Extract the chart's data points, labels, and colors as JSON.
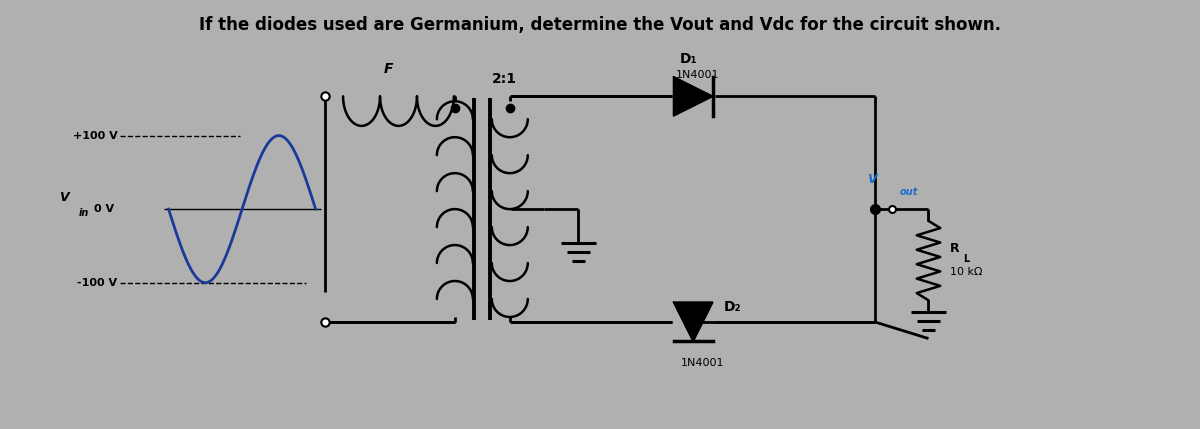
{
  "title": "If the diodes used are Germanium, determine the Vout and Vdc for the circuit shown.",
  "title_fontsize": 12,
  "bg_color": "#b0b0b0",
  "line_color": "#000000",
  "sine_color": "#1a3a99",
  "vout_color": "#1a6bcc",
  "vin_label": "V",
  "vin_sub": "in",
  "pos_label": "+100 V",
  "zero_label": "0 V",
  "neg_label": "-100 V",
  "transformer_ratio": "2:1",
  "diode1_label": "D₁",
  "diode1_part": "1N4001",
  "diode2_label": "D₂",
  "diode2_part": "1N4001",
  "rl_label": "R",
  "rl_sub": "L",
  "rl_value": "10 kΩ",
  "vout_label": "V",
  "vout_sub": "out",
  "f_label": "F"
}
